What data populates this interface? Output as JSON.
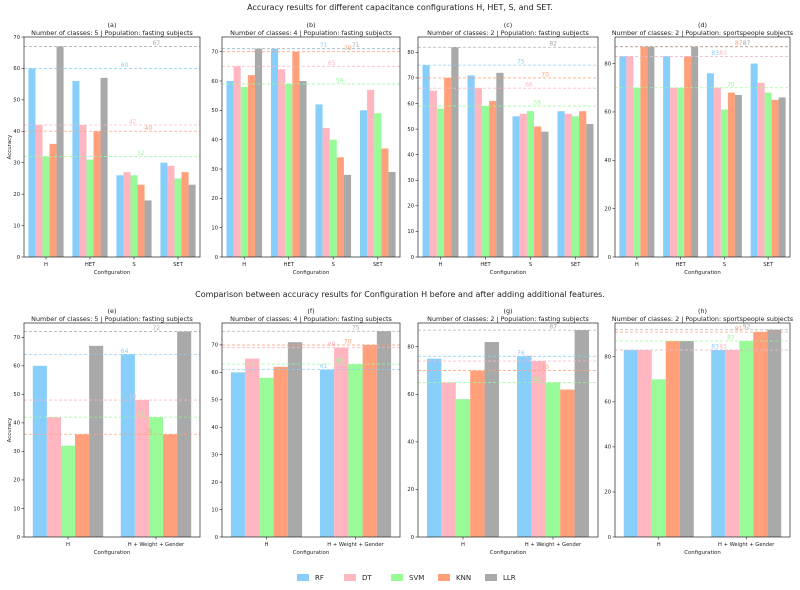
{
  "titles": {
    "top": "Accuracy results for different capacitance configurations H, HET, S, and SET.",
    "bottom": "Comparison between accuracy results for Configuration H before and after adding additional features."
  },
  "legend": [
    {
      "name": "RF",
      "color": "#87CEFA"
    },
    {
      "name": "DT",
      "color": "#FFB6C1"
    },
    {
      "name": "SVM",
      "color": "#98FB98"
    },
    {
      "name": "KNN",
      "color": "#FFA07A"
    },
    {
      "name": "LLR",
      "color": "#A9A9A9"
    }
  ],
  "chart_data": [
    {
      "id": "a",
      "letter": "(a)",
      "type": "bar",
      "title": "Number of classes: 5 | Population: fasting subjects",
      "xlabel": "Configuration",
      "ylabel": "Accuracy",
      "ylim": [
        0,
        70
      ],
      "yticks": [
        0,
        10,
        20,
        30,
        40,
        50,
        60,
        70
      ],
      "categories": [
        "H",
        "HET",
        "S",
        "SET"
      ],
      "series": [
        {
          "name": "RF",
          "values": [
            60,
            56,
            26,
            30
          ]
        },
        {
          "name": "DT",
          "values": [
            42,
            42,
            27,
            29
          ]
        },
        {
          "name": "SVM",
          "values": [
            32,
            31,
            26,
            25
          ]
        },
        {
          "name": "KNN",
          "values": [
            36,
            40,
            23,
            27
          ]
        },
        {
          "name": "LLR",
          "values": [
            67,
            57,
            18,
            23
          ]
        }
      ],
      "ref_lines": [
        {
          "series": "RF",
          "value": 60,
          "label": "60"
        },
        {
          "series": "DT",
          "value": 42,
          "label": "42"
        },
        {
          "series": "SVM",
          "value": 32,
          "label": "32"
        },
        {
          "series": "KNN",
          "value": 40,
          "label": "40"
        },
        {
          "series": "LLR",
          "value": 67,
          "label": "67"
        }
      ]
    },
    {
      "id": "b",
      "letter": "(b)",
      "type": "bar",
      "title": "Number of classes: 4 | Population: fasting subjects",
      "xlabel": "Configuration",
      "ylabel": "",
      "ylim": [
        0,
        75
      ],
      "yticks": [
        0,
        10,
        20,
        30,
        40,
        50,
        60,
        70
      ],
      "categories": [
        "H",
        "HET",
        "S",
        "SET"
      ],
      "series": [
        {
          "name": "RF",
          "values": [
            60,
            71,
            52,
            50
          ]
        },
        {
          "name": "DT",
          "values": [
            65,
            64,
            44,
            57
          ]
        },
        {
          "name": "SVM",
          "values": [
            58,
            59,
            40,
            49
          ]
        },
        {
          "name": "KNN",
          "values": [
            62,
            70,
            34,
            37
          ]
        },
        {
          "name": "LLR",
          "values": [
            71,
            60,
            28,
            29
          ]
        }
      ],
      "ref_lines": [
        {
          "series": "RF",
          "value": 71,
          "label": "71"
        },
        {
          "series": "DT",
          "value": 65,
          "label": "65"
        },
        {
          "series": "SVM",
          "value": 59,
          "label": "59"
        },
        {
          "series": "KNN",
          "value": 70,
          "label": "70"
        },
        {
          "series": "LLR",
          "value": 71,
          "label": "71"
        }
      ]
    },
    {
      "id": "c",
      "letter": "(c)",
      "type": "bar",
      "title": "Number of classes: 2 | Population: fasting subjects",
      "xlabel": "Configuration",
      "ylabel": "",
      "ylim": [
        0,
        86
      ],
      "yticks": [
        0,
        10,
        20,
        30,
        40,
        50,
        60,
        70,
        80
      ],
      "categories": [
        "H",
        "HET",
        "S",
        "SET"
      ],
      "series": [
        {
          "name": "RF",
          "values": [
            75,
            71,
            55,
            57
          ]
        },
        {
          "name": "DT",
          "values": [
            65,
            66,
            56,
            56
          ]
        },
        {
          "name": "SVM",
          "values": [
            58,
            59,
            57,
            55
          ]
        },
        {
          "name": "KNN",
          "values": [
            70,
            61,
            51,
            57
          ]
        },
        {
          "name": "LLR",
          "values": [
            82,
            72,
            49,
            52
          ]
        }
      ],
      "ref_lines": [
        {
          "series": "RF",
          "value": 75,
          "label": "75"
        },
        {
          "series": "DT",
          "value": 66,
          "label": "66"
        },
        {
          "series": "SVM",
          "value": 59,
          "label": "59"
        },
        {
          "series": "KNN",
          "value": 70,
          "label": "70"
        },
        {
          "series": "LLR",
          "value": 82,
          "label": "82"
        }
      ]
    },
    {
      "id": "d",
      "letter": "(d)",
      "type": "bar",
      "title": "Number of classes: 2 | Population: sportspeople subjects",
      "xlabel": "Configuration",
      "ylabel": "",
      "ylim": [
        0,
        91
      ],
      "yticks": [
        0,
        20,
        40,
        60,
        80
      ],
      "categories": [
        "H",
        "HET",
        "S",
        "SET"
      ],
      "series": [
        {
          "name": "RF",
          "values": [
            83,
            83,
            76,
            80
          ]
        },
        {
          "name": "DT",
          "values": [
            83,
            70,
            70,
            72
          ]
        },
        {
          "name": "SVM",
          "values": [
            70,
            70,
            61,
            68
          ]
        },
        {
          "name": "KNN",
          "values": [
            87,
            83,
            68,
            65
          ]
        },
        {
          "name": "LLR",
          "values": [
            87,
            87,
            67,
            66
          ]
        }
      ],
      "ref_lines": [
        {
          "series": "RF",
          "value": 83,
          "label": "83"
        },
        {
          "series": "DT",
          "value": 83,
          "label": "83"
        },
        {
          "series": "SVM",
          "value": 70,
          "label": "70"
        },
        {
          "series": "KNN",
          "value": 87,
          "label": "87"
        },
        {
          "series": "LLR",
          "value": 87,
          "label": "87"
        }
      ]
    },
    {
      "id": "e",
      "letter": "(e)",
      "type": "bar",
      "title": "Number of classes: 5 | Population: fasting subjects",
      "xlabel": "Configuration",
      "ylabel": "Accuracy",
      "ylim": [
        0,
        75
      ],
      "yticks": [
        0,
        10,
        20,
        30,
        40,
        50,
        60,
        70
      ],
      "categories": [
        "H",
        "H + Weight + Gender"
      ],
      "series": [
        {
          "name": "RF",
          "values": [
            60,
            64
          ]
        },
        {
          "name": "DT",
          "values": [
            42,
            48
          ]
        },
        {
          "name": "SVM",
          "values": [
            32,
            42
          ]
        },
        {
          "name": "KNN",
          "values": [
            36,
            36
          ]
        },
        {
          "name": "LLR",
          "values": [
            67,
            72
          ]
        }
      ],
      "ref_lines": [
        {
          "series": "RF",
          "value": 64,
          "label": "64"
        },
        {
          "series": "DT",
          "value": 48,
          "label": "48"
        },
        {
          "series": "SVM",
          "value": 42,
          "label": "42"
        },
        {
          "series": "KNN",
          "value": 36,
          "label": "36"
        },
        {
          "series": "LLR",
          "value": 72,
          "label": "72"
        }
      ]
    },
    {
      "id": "f",
      "letter": "(f)",
      "type": "bar",
      "title": "Number of classes: 4 | Population: fasting subjects",
      "xlabel": "Configuration",
      "ylabel": "",
      "ylim": [
        0,
        78
      ],
      "yticks": [
        0,
        10,
        20,
        30,
        40,
        50,
        60,
        70
      ],
      "categories": [
        "H",
        "H + Weight + Gender"
      ],
      "series": [
        {
          "name": "RF",
          "values": [
            60,
            61
          ]
        },
        {
          "name": "DT",
          "values": [
            65,
            69
          ]
        },
        {
          "name": "SVM",
          "values": [
            58,
            63
          ]
        },
        {
          "name": "KNN",
          "values": [
            62,
            70
          ]
        },
        {
          "name": "LLR",
          "values": [
            71,
            75
          ]
        }
      ],
      "ref_lines": [
        {
          "series": "RF",
          "value": 61,
          "label": "61"
        },
        {
          "series": "DT",
          "value": 69,
          "label": "69"
        },
        {
          "series": "SVM",
          "value": 63,
          "label": "63"
        },
        {
          "series": "KNN",
          "value": 70,
          "label": "70"
        },
        {
          "series": "LLR",
          "value": 75,
          "label": "75"
        }
      ]
    },
    {
      "id": "g",
      "letter": "(g)",
      "type": "bar",
      "title": "Number of classes: 2 | Population: fasting subjects",
      "xlabel": "Configuration",
      "ylabel": "",
      "ylim": [
        0,
        90
      ],
      "yticks": [
        0,
        20,
        40,
        60,
        80
      ],
      "categories": [
        "H",
        "H + Weight + Gender"
      ],
      "series": [
        {
          "name": "RF",
          "values": [
            75,
            76
          ]
        },
        {
          "name": "DT",
          "values": [
            65,
            74
          ]
        },
        {
          "name": "SVM",
          "values": [
            58,
            65
          ]
        },
        {
          "name": "KNN",
          "values": [
            70,
            62
          ]
        },
        {
          "name": "LLR",
          "values": [
            82,
            87
          ]
        }
      ],
      "ref_lines": [
        {
          "series": "RF",
          "value": 76,
          "label": "76"
        },
        {
          "series": "DT",
          "value": 74,
          "label": "74"
        },
        {
          "series": "SVM",
          "value": 65,
          "label": "65"
        },
        {
          "series": "KNN",
          "value": 70,
          "label": "70"
        },
        {
          "series": "LLR",
          "value": 87,
          "label": "87"
        }
      ]
    },
    {
      "id": "h",
      "letter": "(h)",
      "type": "bar",
      "title": "Number of classes: 2 | Population: sportspeople subjects",
      "xlabel": "Configuration",
      "ylabel": "",
      "ylim": [
        0,
        95
      ],
      "yticks": [
        0,
        20,
        40,
        60,
        80
      ],
      "categories": [
        "H",
        "H + Weight + Gender"
      ],
      "series": [
        {
          "name": "RF",
          "values": [
            83,
            83
          ]
        },
        {
          "name": "DT",
          "values": [
            83,
            83
          ]
        },
        {
          "name": "SVM",
          "values": [
            70,
            87
          ]
        },
        {
          "name": "KNN",
          "values": [
            87,
            91
          ]
        },
        {
          "name": "LLR",
          "values": [
            87,
            92
          ]
        }
      ],
      "ref_lines": [
        {
          "series": "RF",
          "value": 83,
          "label": "83"
        },
        {
          "series": "DT",
          "value": 83,
          "label": "83"
        },
        {
          "series": "SVM",
          "value": 87,
          "label": "87"
        },
        {
          "series": "KNN",
          "value": 91,
          "label": "91"
        },
        {
          "series": "LLR",
          "value": 92,
          "label": "92"
        }
      ]
    }
  ]
}
